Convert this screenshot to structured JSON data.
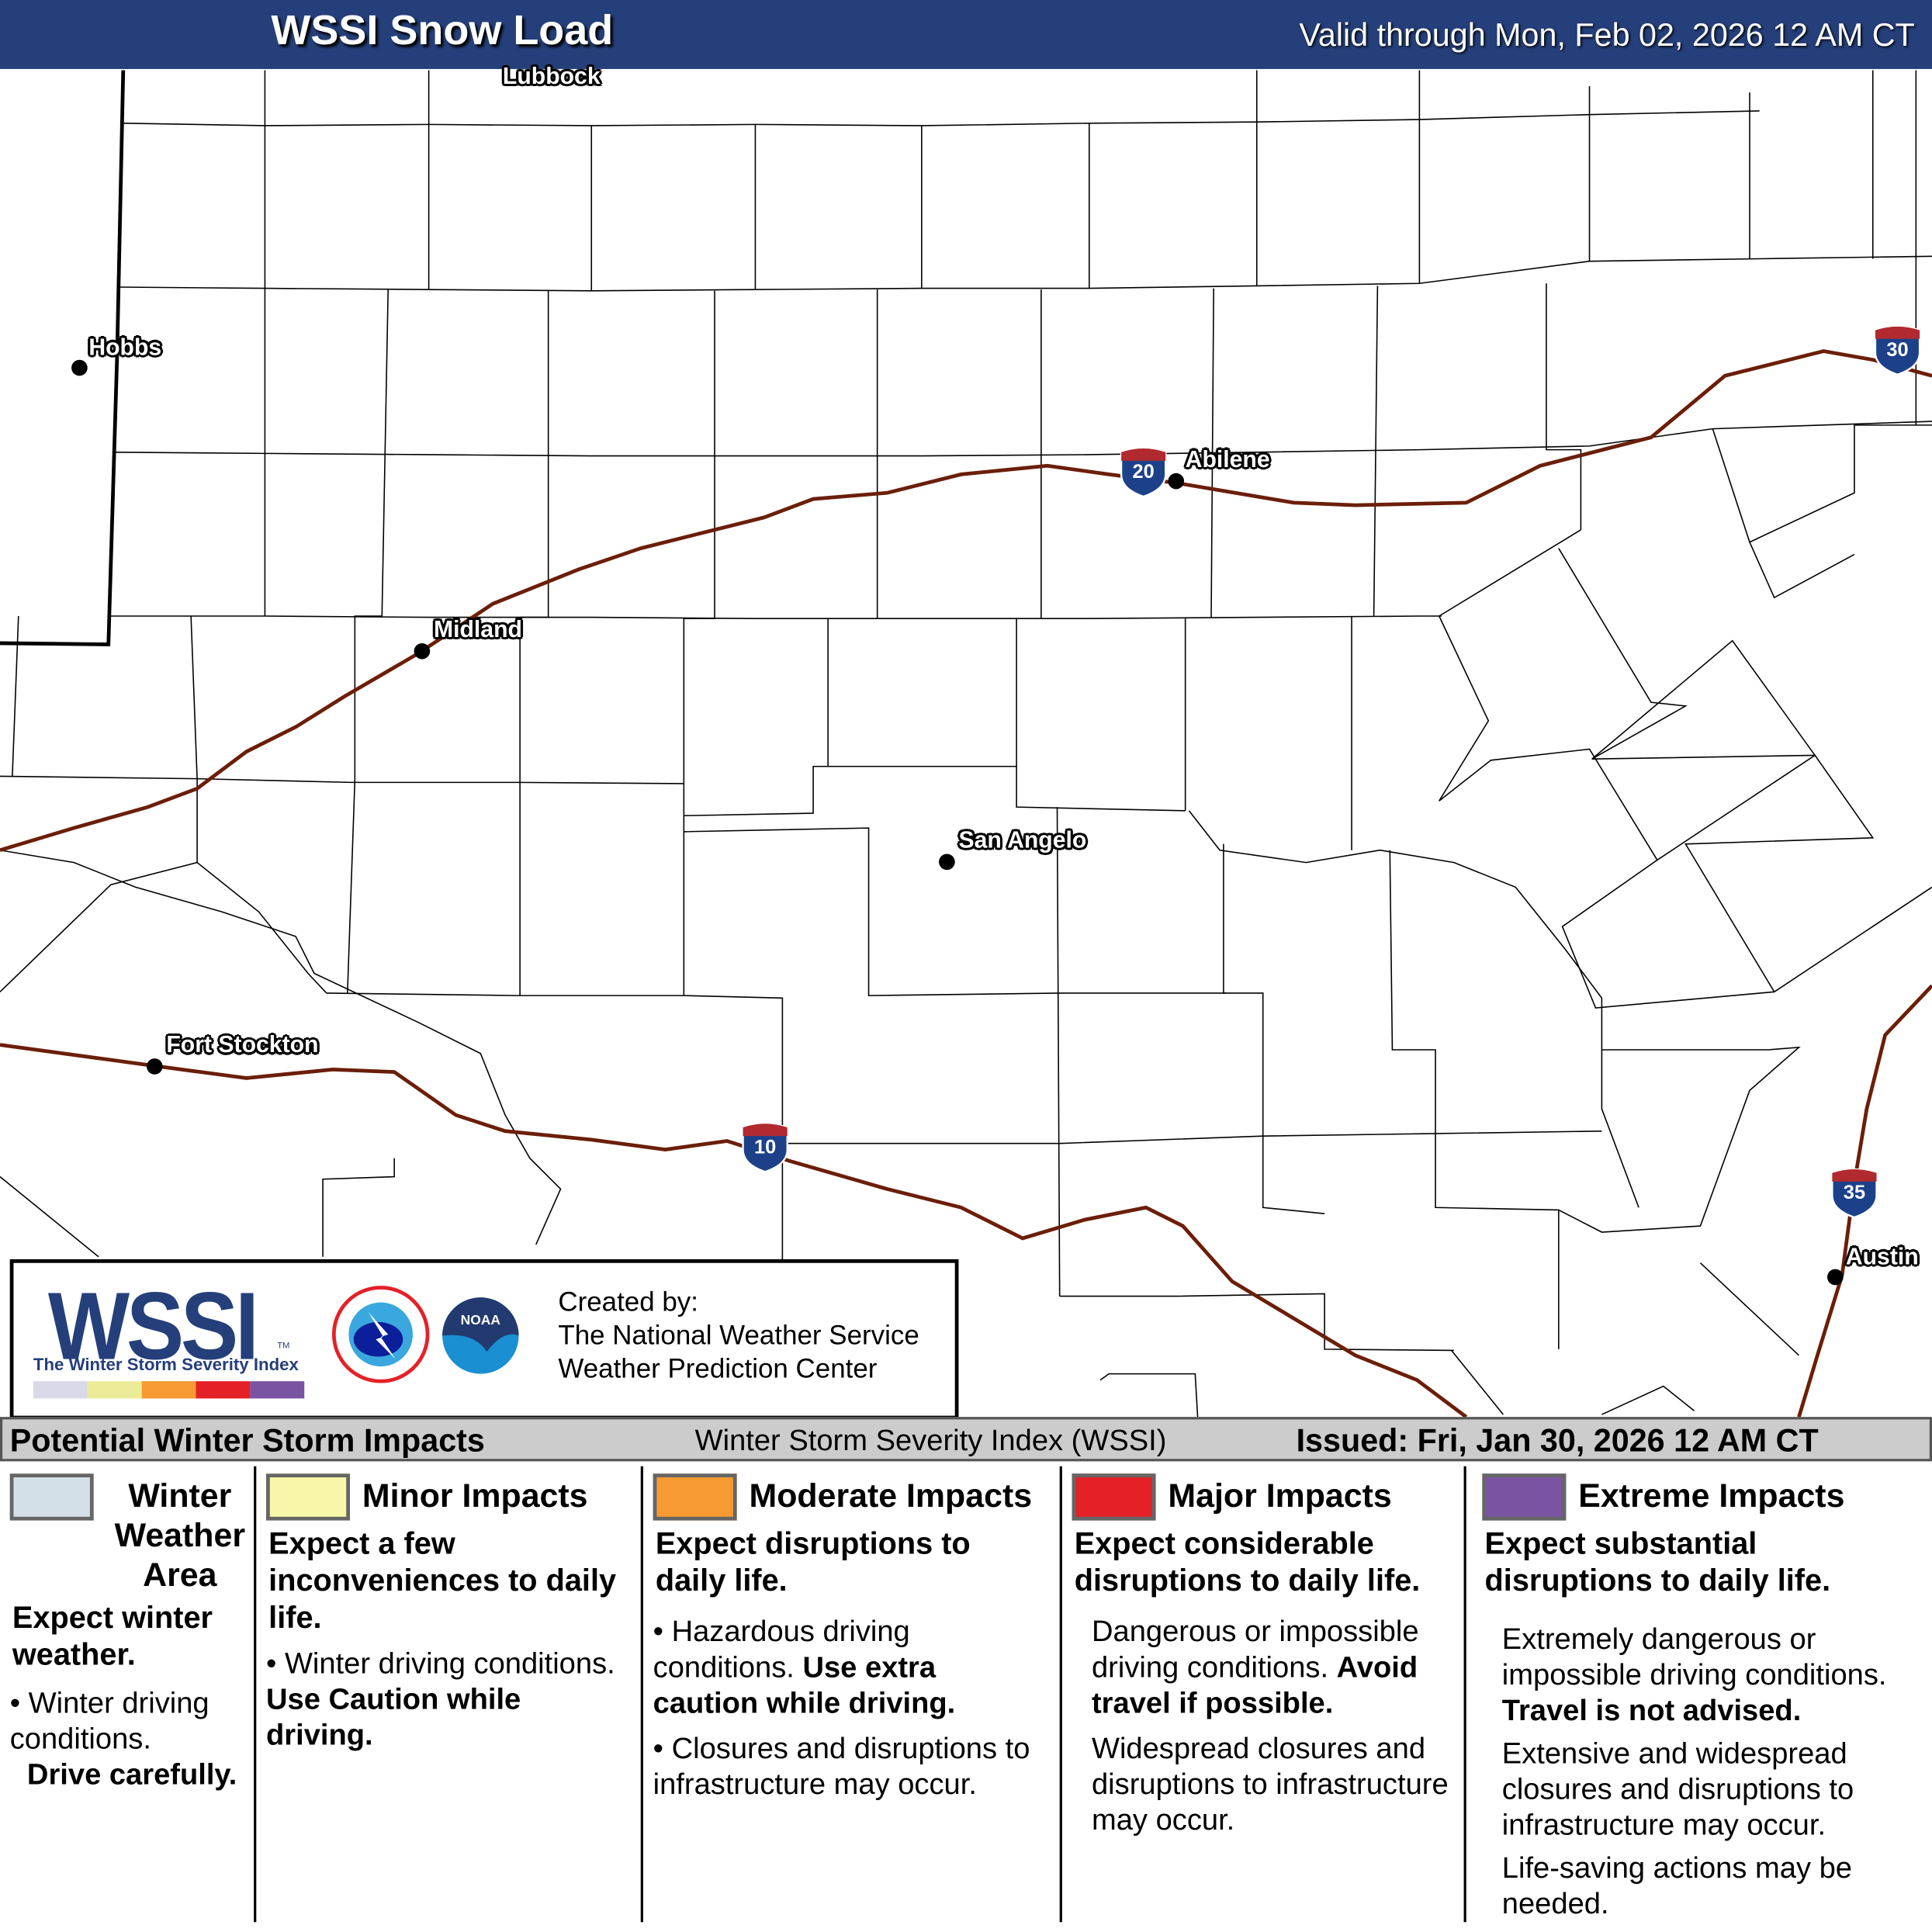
{
  "header": {
    "title": "WSSI Snow Load",
    "valid": "Valid through Mon, Feb 02, 2026 12 AM CT"
  },
  "cities": [
    {
      "name": "Lubbock"
    },
    {
      "name": "Hobbs"
    },
    {
      "name": "Abilene"
    },
    {
      "name": "Midland"
    },
    {
      "name": "San Angelo"
    },
    {
      "name": "Fort Stockton"
    },
    {
      "name": "Austin"
    }
  ],
  "interstates": [
    {
      "number": "20"
    },
    {
      "number": "30"
    },
    {
      "number": "10"
    },
    {
      "number": "35"
    }
  ],
  "colors": {
    "header": "#253f7a",
    "highway": "#6b1e08",
    "winter_weather_area": "#d3e0e8",
    "minor": "#f8f6a8",
    "moderate": "#f79a31",
    "major": "#e42127",
    "extreme": "#7a53a2"
  },
  "logo": {
    "wssi": "WSSI",
    "tm": "TM",
    "tagline": "The Winter Storm Severity Index",
    "created_by": "Created by:",
    "org1": "The National Weather Service",
    "org2": "Weather Prediction Center"
  },
  "strip": {
    "left": "Potential Winter Storm Impacts",
    "center": "Winter Storm Severity Index (WSSI)",
    "issued": "Issued: Fri, Jan 30, 2026 12 AM CT"
  },
  "legend": [
    {
      "title": "Winter Weather Area",
      "summary": "Expect winter weather.",
      "detail": "Winter driving conditions.",
      "emphasis": "Drive carefully."
    },
    {
      "title": "Minor Impacts",
      "summary": "Expect a few inconveniences to daily life.",
      "detail": "Winter driving conditions.",
      "emphasis": "Use Caution while driving."
    },
    {
      "title": "Moderate Impacts",
      "summary": "Expect disruptions to daily life.",
      "detail": "Hazardous driving conditions.",
      "emphasis": "Use extra caution while driving.",
      "detail2": "Closures and disruptions to infrastructure may occur."
    },
    {
      "title": "Major Impacts",
      "summary": "Expect considerable disruptions to daily life.",
      "detail": "Dangerous or impossible driving conditions.",
      "emphasis": "Avoid travel if possible.",
      "detail2": "Widespread closures and disruptions to infrastructure may occur."
    },
    {
      "title": "Extreme Impacts",
      "summary": "Expect substantial disruptions to daily life.",
      "detail": "Extremely dangerous or impossible driving conditions.",
      "emphasis": "Travel is not advised.",
      "detail2": "Extensive and widespread closures and disruptions to infrastructure may occur.",
      "detail3": "Life-saving actions may be needed."
    }
  ]
}
